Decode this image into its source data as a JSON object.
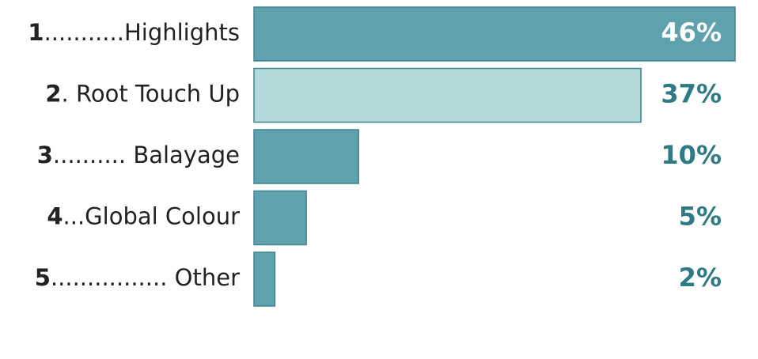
{
  "chart_data": {
    "type": "hbar",
    "ranks": [
      1,
      2,
      3,
      4,
      5
    ],
    "categories": [
      "...........Highlights",
      ". Root Touch Up",
      ".......... Balayage",
      "...Global Colour",
      "................ Other"
    ],
    "values": [
      46,
      37,
      10,
      5,
      2
    ],
    "value_labels": [
      "46%",
      "37%",
      "10%",
      "5%",
      "2%"
    ],
    "colors": [
      "#5fa2ad",
      "#b3d8da",
      "#5fa2ad",
      "#5fa2ad",
      "#5fa2ad"
    ]
  }
}
